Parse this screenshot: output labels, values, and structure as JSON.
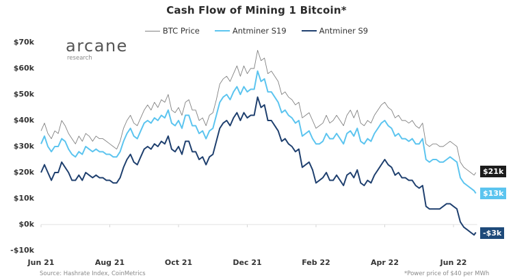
{
  "chart_data": {
    "type": "line",
    "title": "Cash Flow of Mining 1 Bitcoin*",
    "xlabel": "",
    "ylabel": "",
    "ylim": [
      -10,
      70
    ],
    "y_unit": "$k",
    "y_ticks": [
      "$70k",
      "$60k",
      "$50k",
      "$40k",
      "$30k",
      "$20k",
      "$10k",
      "$0k",
      "-$10k"
    ],
    "y_tick_values": [
      70,
      60,
      50,
      40,
      30,
      20,
      10,
      0,
      -10
    ],
    "x_ticks": [
      "Jun 21",
      "Aug 21",
      "Oct 21",
      "Dec 21",
      "Feb 22",
      "Apr 22",
      "Jun 22"
    ],
    "x_tick_months": [
      0,
      2,
      4,
      6,
      8,
      10,
      12
    ],
    "x_range_months": [
      0,
      12.65
    ],
    "grid": false,
    "zero_line": true,
    "legend_placement": "top-center",
    "x_months": [
      0,
      0.1,
      0.2,
      0.3,
      0.4,
      0.5,
      0.6,
      0.7,
      0.8,
      0.9,
      1.0,
      1.1,
      1.2,
      1.3,
      1.4,
      1.5,
      1.6,
      1.7,
      1.8,
      1.9,
      2.0,
      2.1,
      2.2,
      2.3,
      2.4,
      2.5,
      2.6,
      2.7,
      2.8,
      2.9,
      3.0,
      3.1,
      3.2,
      3.3,
      3.4,
      3.5,
      3.6,
      3.7,
      3.8,
      3.9,
      4.0,
      4.1,
      4.2,
      4.3,
      4.4,
      4.5,
      4.6,
      4.7,
      4.8,
      4.9,
      5.0,
      5.1,
      5.2,
      5.3,
      5.4,
      5.5,
      5.6,
      5.7,
      5.8,
      5.9,
      6.0,
      6.1,
      6.2,
      6.3,
      6.4,
      6.5,
      6.6,
      6.7,
      6.8,
      6.9,
      7.0,
      7.1,
      7.2,
      7.3,
      7.4,
      7.5,
      7.6,
      7.7,
      7.8,
      7.9,
      8.0,
      8.1,
      8.2,
      8.3,
      8.4,
      8.5,
      8.6,
      8.7,
      8.8,
      8.9,
      9.0,
      9.1,
      9.2,
      9.3,
      9.4,
      9.5,
      9.6,
      9.7,
      9.8,
      9.9,
      10.0,
      10.1,
      10.2,
      10.3,
      10.4,
      10.5,
      10.6,
      10.7,
      10.8,
      10.9,
      11.0,
      11.1,
      11.2,
      11.3,
      11.4,
      11.5,
      11.6,
      11.7,
      11.8,
      11.9,
      12.0,
      12.1,
      12.2,
      12.3,
      12.4,
      12.5,
      12.6,
      12.65
    ],
    "series": [
      {
        "name": "BTC Price",
        "color": "#808080",
        "end_label": "$21k",
        "end_label_color": "#1c1c1c",
        "values": [
          36,
          39,
          35,
          33,
          36,
          35,
          40,
          38,
          35,
          33,
          31,
          34,
          32,
          35,
          34,
          32,
          34,
          33,
          33,
          32,
          31,
          30,
          29,
          32,
          37,
          40,
          42,
          39,
          38,
          41,
          44,
          46,
          44,
          47,
          45,
          48,
          47,
          50,
          44,
          43,
          45,
          42,
          47,
          48,
          44,
          44,
          40,
          41,
          38,
          42,
          43,
          48,
          54,
          56,
          57,
          55,
          58,
          61,
          57,
          61,
          58,
          60,
          60,
          67,
          63,
          64,
          58,
          59,
          57,
          55,
          50,
          51,
          49,
          48,
          46,
          47,
          41,
          42,
          43,
          40,
          37,
          38,
          39,
          42,
          39,
          40,
          42,
          40,
          38,
          42,
          44,
          41,
          44,
          39,
          38,
          40,
          39,
          42,
          44,
          46,
          47,
          45,
          44,
          41,
          42,
          40,
          40,
          39,
          40,
          38,
          37,
          39,
          31,
          30,
          31,
          31,
          30,
          30,
          31,
          32,
          31,
          30,
          24,
          22,
          21,
          20,
          19,
          20,
          21
        ]
      },
      {
        "name": "Antminer S19",
        "color": "#5bc4ef",
        "end_label": "$13k",
        "end_label_color": "#5bc4ef",
        "values": [
          31,
          34,
          30,
          28,
          30,
          30,
          33,
          32,
          29,
          27,
          26,
          28,
          27,
          30,
          29,
          28,
          29,
          28,
          28,
          27,
          27,
          26,
          26,
          28,
          32,
          35,
          37,
          34,
          33,
          36,
          39,
          40,
          39,
          41,
          40,
          42,
          41,
          44,
          39,
          38,
          40,
          37,
          42,
          42,
          38,
          38,
          35,
          36,
          33,
          36,
          37,
          42,
          47,
          49,
          50,
          48,
          51,
          53,
          50,
          53,
          51,
          52,
          52,
          59,
          55,
          56,
          51,
          51,
          49,
          47,
          43,
          44,
          42,
          41,
          39,
          40,
          34,
          35,
          36,
          33,
          31,
          31,
          32,
          35,
          33,
          33,
          35,
          33,
          31,
          35,
          36,
          34,
          37,
          32,
          31,
          33,
          32,
          35,
          37,
          39,
          40,
          38,
          37,
          34,
          35,
          33,
          33,
          32,
          33,
          31,
          31,
          33,
          25,
          24,
          25,
          25,
          24,
          24,
          25,
          26,
          25,
          24,
          18,
          16,
          15,
          14,
          13,
          12,
          13
        ]
      },
      {
        "name": "Antminer S9",
        "color": "#1e3f6e",
        "end_label": "-$3k",
        "end_label_color": "#1e4a7a",
        "values": [
          20,
          23,
          20,
          17,
          20,
          20,
          24,
          22,
          20,
          17,
          17,
          19,
          17,
          20,
          19,
          18,
          19,
          18,
          18,
          17,
          17,
          16,
          16,
          18,
          22,
          25,
          27,
          24,
          23,
          26,
          29,
          30,
          29,
          31,
          30,
          32,
          31,
          34,
          29,
          28,
          30,
          27,
          32,
          32,
          28,
          28,
          25,
          26,
          23,
          26,
          27,
          32,
          37,
          39,
          40,
          38,
          41,
          43,
          40,
          43,
          41,
          42,
          42,
          49,
          45,
          46,
          40,
          40,
          38,
          36,
          32,
          33,
          31,
          30,
          28,
          29,
          22,
          23,
          24,
          21,
          16,
          17,
          18,
          20,
          17,
          17,
          19,
          17,
          15,
          19,
          20,
          18,
          21,
          16,
          15,
          17,
          16,
          19,
          21,
          23,
          25,
          23,
          22,
          19,
          20,
          18,
          18,
          17,
          17,
          15,
          14,
          15,
          7,
          6,
          6,
          6,
          6,
          7,
          8,
          8,
          7,
          6,
          1,
          -1,
          -2,
          -3,
          -4,
          -3,
          -3
        ]
      }
    ]
  },
  "logo": {
    "name": "arcane",
    "sub": "research"
  },
  "footer": {
    "source": "Source: Hashrate Index, CoinMetrics",
    "note": "*Power price of $40 per MWh"
  }
}
